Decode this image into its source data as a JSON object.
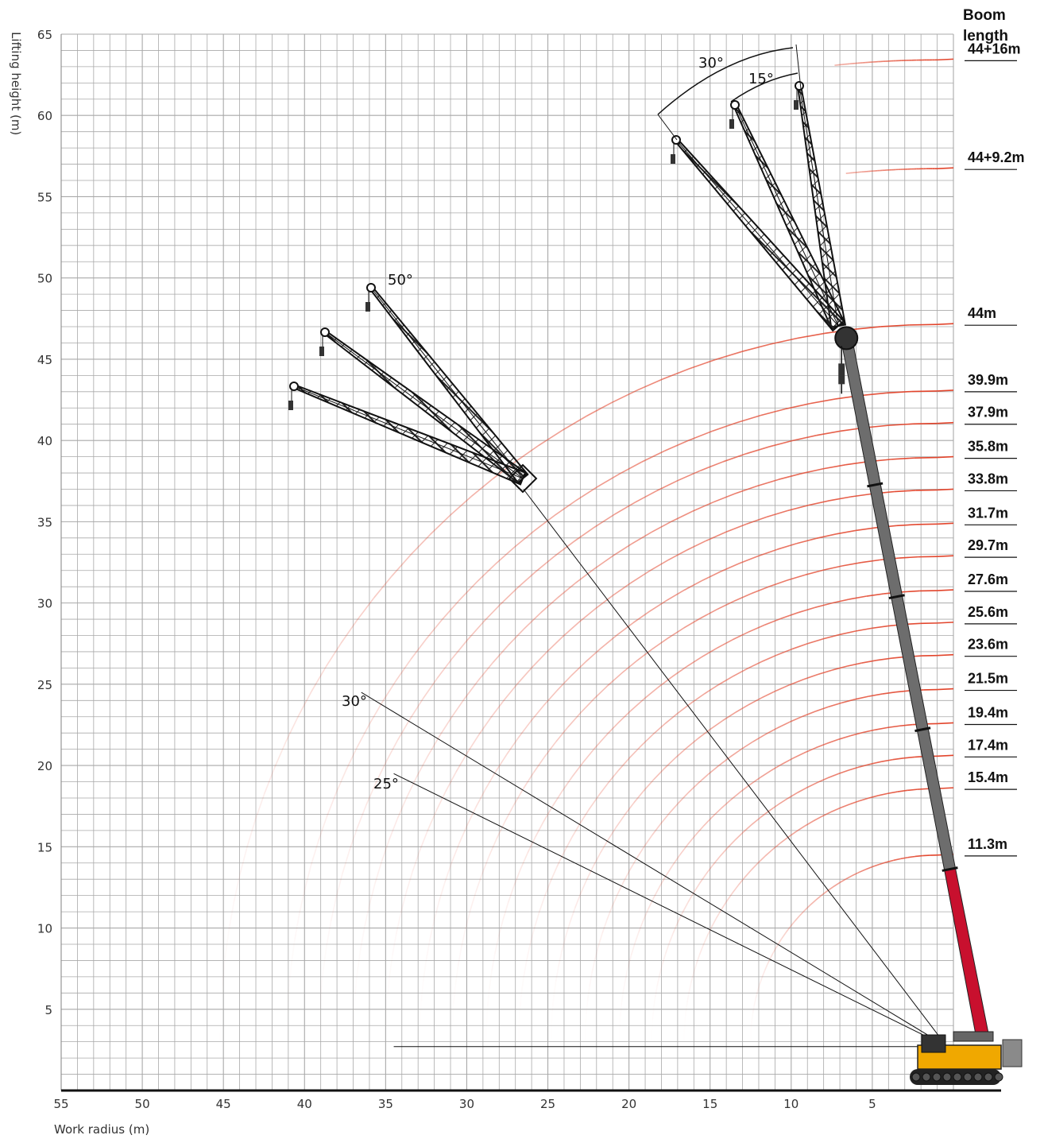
{
  "chart_data": {
    "type": "line",
    "title": "",
    "xlabel": "Work radius  (m)",
    "ylabel": "Lifting height  (m)",
    "xlim": [
      55,
      0
    ],
    "ylim": [
      0,
      65
    ],
    "x_ticks": [
      "55",
      "50",
      "45",
      "40",
      "35",
      "30",
      "25",
      "20",
      "15",
      "10",
      "5"
    ],
    "y_ticks": [
      "5",
      "10",
      "15",
      "20",
      "25",
      "30",
      "35",
      "40",
      "45",
      "50",
      "55",
      "60",
      "65"
    ],
    "grid": true,
    "legend_title": [
      "Boom",
      "length"
    ],
    "pivot": {
      "x": 1.0,
      "y": 3.0
    },
    "series": [
      {
        "name": "44+16m",
        "boom": 44,
        "radius": 60.5
      },
      {
        "name": "44+9.2m",
        "boom": 44,
        "radius": 53.8
      },
      {
        "name": "44m",
        "boom": 44,
        "radius": 44.2
      },
      {
        "name": "39.9m",
        "boom": 39.9,
        "radius": 40.1
      },
      {
        "name": "37.9m",
        "boom": 37.9,
        "radius": 38.1
      },
      {
        "name": "35.8m",
        "boom": 35.8,
        "radius": 36.0
      },
      {
        "name": "33.8m",
        "boom": 33.8,
        "radius": 34.0
      },
      {
        "name": "31.7m",
        "boom": 31.7,
        "radius": 31.9
      },
      {
        "name": "29.7m",
        "boom": 29.7,
        "radius": 29.9
      },
      {
        "name": "27.6m",
        "boom": 27.6,
        "radius": 27.8
      },
      {
        "name": "25.6m",
        "boom": 25.6,
        "radius": 25.8
      },
      {
        "name": "23.6m",
        "boom": 23.6,
        "radius": 23.8
      },
      {
        "name": "21.5m",
        "boom": 21.5,
        "radius": 21.7
      },
      {
        "name": "19.4m",
        "boom": 19.4,
        "radius": 19.6
      },
      {
        "name": "17.4m",
        "boom": 17.4,
        "radius": 17.6
      },
      {
        "name": "15.4m",
        "boom": 15.4,
        "radius": 15.6
      },
      {
        "name": "11.3m",
        "boom": 11.3,
        "radius": 11.5
      }
    ],
    "boom_angle_lines": [
      {
        "label": "30°",
        "end": [
          36.5,
          24.5
        ]
      },
      {
        "label": "25°",
        "end": [
          34.5,
          19.5
        ]
      },
      {
        "end": [
          26.5,
          37.0
        ]
      }
    ],
    "fly_jib_angles": [
      "50°",
      "30°",
      "15°"
    ],
    "colors": {
      "grid": "#a9a9a9",
      "curve": "#e2442b",
      "boom_base": "#c8102e",
      "boom_main": "#6d6d6d",
      "jib": "#222222",
      "carrier": "#f0a800"
    }
  }
}
